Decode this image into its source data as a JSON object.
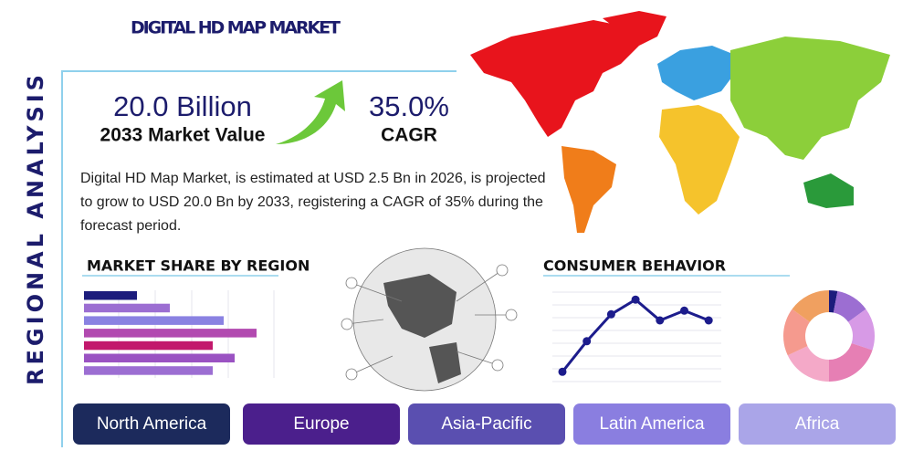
{
  "header": {
    "title": "DIGITAL HD MAP MARKET",
    "side_label": "REGIONAL ANALYSIS"
  },
  "stats": [
    {
      "value": "20.0 Billion",
      "label": "2033 Market Value"
    },
    {
      "value": "35.0%",
      "label": "CAGR"
    }
  ],
  "description": "Digital HD Map Market, is estimated at USD 2.5 Bn in 2026, is projected to grow to USD 20.0 Bn by 2033, registering a CAGR of 35% during the forecast period.",
  "market_share": {
    "title": "MARKET SHARE BY REGION",
    "values": [
      58,
      94,
      153,
      189,
      141,
      165,
      141
    ],
    "colors": [
      "#1c1c7c",
      "#9c6ed2",
      "#8a82e2",
      "#b24ab0",
      "#c2186c",
      "#9a52c2",
      "#9c6ed2"
    ]
  },
  "consumer_behavior": {
    "title": "CONSUMER BEHAVIOR",
    "line": {
      "values": [
        0.8,
        3.3,
        5.5,
        6.7,
        5.0,
        5.8,
        5.0
      ],
      "color": "#1c1c8c"
    },
    "donut": {
      "values": [
        3,
        12,
        15,
        20,
        18,
        17,
        15
      ],
      "colors": [
        "#1c1c7c",
        "#9c6ed2",
        "#d79ae6",
        "#e67fb4",
        "#f4a9c8",
        "#f59a8e",
        "#f0a060"
      ]
    }
  },
  "regions": [
    {
      "label": "North America",
      "color": "#1c2a5c"
    },
    {
      "label": "Europe",
      "color": "#4b1f8c"
    },
    {
      "label": "Asia-Pacific",
      "color": "#5a4fb0"
    },
    {
      "label": "Latin America",
      "color": "#8a7ee0"
    },
    {
      "label": "Africa",
      "color": "#aaa5e8"
    }
  ]
}
